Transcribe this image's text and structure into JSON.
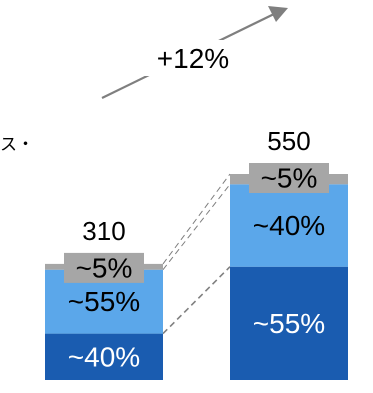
{
  "fragment_text": "ス・",
  "growth_label": "+12%",
  "colors": {
    "dark_blue": "#1a5cb0",
    "mid_blue": "#5ba7ea",
    "gray": "#a6a6a6",
    "connector": "#7f7f7f",
    "arrow": "#7f7f7f"
  },
  "chart_data": {
    "type": "bar",
    "stacked": true,
    "bars": [
      {
        "total": 310,
        "total_label": "310",
        "segments": [
          {
            "share": 0.4,
            "label": "~40%",
            "color": "#1a5cb0",
            "text_color": "#ffffff"
          },
          {
            "share": 0.55,
            "label": "~55%",
            "color": "#5ba7ea",
            "text_color": "#000000"
          },
          {
            "share": 0.05,
            "label": "~5%",
            "color": "#a6a6a6",
            "text_color": "#000000"
          }
        ]
      },
      {
        "total": 550,
        "total_label": "550",
        "segments": [
          {
            "share": 0.55,
            "label": "~55%",
            "color": "#1a5cb0",
            "text_color": "#ffffff"
          },
          {
            "share": 0.4,
            "label": "~40%",
            "color": "#5ba7ea",
            "text_color": "#000000"
          },
          {
            "share": 0.05,
            "label": "~5%",
            "color": "#a6a6a6",
            "text_color": "#000000"
          }
        ]
      }
    ]
  }
}
